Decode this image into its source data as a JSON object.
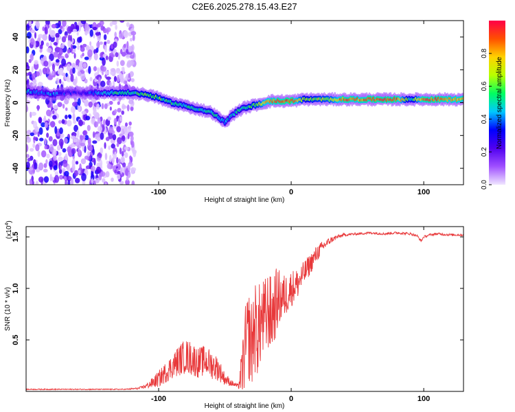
{
  "figure": {
    "title": "C2E6.2025.278.15.43.E27"
  },
  "colors": {
    "snr_line": "#e8383a",
    "axis": "#000000",
    "background": "#ffffff"
  },
  "chart_data": [
    {
      "type": "heatmap",
      "name": "spectrogram",
      "xlabel": "Height of straight line (km)",
      "ylabel": "Frequency (Hz)",
      "xlim": [
        -200,
        130
      ],
      "ylim": [
        -50,
        50
      ],
      "xticks": [
        -100,
        0,
        100
      ],
      "xtick_labels": [
        "-100",
        "0",
        "100"
      ],
      "yticks": [
        -40,
        -20,
        0,
        20,
        40
      ],
      "ytick_labels": [
        "-40",
        "-20",
        "0",
        "20",
        "40"
      ],
      "colorbar": {
        "label": "Normalized spectral amplitude",
        "range": [
          0,
          1
        ],
        "ticks": [
          0.0,
          0.2,
          0.4,
          0.6,
          0.8
        ],
        "tick_labels": [
          "0.0",
          "0.2",
          "0.4",
          "0.6",
          "0.8"
        ],
        "stops": [
          "#f0e6ff",
          "#a050ff",
          "#5000f0",
          "#0000ff",
          "#00c8ff",
          "#00ff60",
          "#b8ff00",
          "#ffd200",
          "#ff5000",
          "#ff0048"
        ]
      },
      "noise_region_x": [
        -200,
        -118
      ],
      "ridge": [
        {
          "x": -200,
          "y": 7,
          "amp": 0.45
        },
        {
          "x": -190,
          "y": 6,
          "amp": 0.35
        },
        {
          "x": -180,
          "y": 5,
          "amp": 0.4
        },
        {
          "x": -170,
          "y": 6,
          "amp": 0.3
        },
        {
          "x": -160,
          "y": 6,
          "amp": 0.25
        },
        {
          "x": -150,
          "y": 6,
          "amp": 0.35
        },
        {
          "x": -140,
          "y": 6,
          "amp": 0.45
        },
        {
          "x": -130,
          "y": 6,
          "amp": 0.55
        },
        {
          "x": -120,
          "y": 6,
          "amp": 0.5
        },
        {
          "x": -110,
          "y": 5,
          "amp": 0.6
        },
        {
          "x": -100,
          "y": 3,
          "amp": 0.6
        },
        {
          "x": -95,
          "y": 1,
          "amp": 0.55
        },
        {
          "x": -90,
          "y": 0,
          "amp": 0.55
        },
        {
          "x": -85,
          "y": -1,
          "amp": 0.5
        },
        {
          "x": -80,
          "y": -2,
          "amp": 0.5
        },
        {
          "x": -75,
          "y": -3,
          "amp": 0.5
        },
        {
          "x": -70,
          "y": -4,
          "amp": 0.5
        },
        {
          "x": -65,
          "y": -5,
          "amp": 0.5
        },
        {
          "x": -60,
          "y": -6,
          "amp": 0.5
        },
        {
          "x": -55,
          "y": -9,
          "amp": 0.5
        },
        {
          "x": -50,
          "y": -12,
          "amp": 0.45
        },
        {
          "x": -45,
          "y": -8,
          "amp": 0.45
        },
        {
          "x": -40,
          "y": -5,
          "amp": 0.5
        },
        {
          "x": -35,
          "y": -3,
          "amp": 0.5
        },
        {
          "x": -30,
          "y": -2,
          "amp": 0.6
        },
        {
          "x": -25,
          "y": -1,
          "amp": 0.65
        },
        {
          "x": -20,
          "y": 0,
          "amp": 0.8
        },
        {
          "x": -15,
          "y": 1,
          "amp": 0.85
        },
        {
          "x": -10,
          "y": 1,
          "amp": 0.9
        },
        {
          "x": -5,
          "y": 1,
          "amp": 0.9
        },
        {
          "x": 0,
          "y": 1,
          "amp": 0.95
        },
        {
          "x": 10,
          "y": 2,
          "amp": 0.6
        },
        {
          "x": 20,
          "y": 2,
          "amp": 0.65
        },
        {
          "x": 30,
          "y": 2,
          "amp": 0.7
        },
        {
          "x": 40,
          "y": 2,
          "amp": 0.9
        },
        {
          "x": 50,
          "y": 2,
          "amp": 0.85
        },
        {
          "x": 60,
          "y": 2,
          "amp": 0.9
        },
        {
          "x": 70,
          "y": 2,
          "amp": 0.9
        },
        {
          "x": 80,
          "y": 2,
          "amp": 0.9
        },
        {
          "x": 90,
          "y": 2,
          "amp": 0.5
        },
        {
          "x": 100,
          "y": 2,
          "amp": 0.9
        },
        {
          "x": 110,
          "y": 2,
          "amp": 0.9
        },
        {
          "x": 120,
          "y": 2,
          "amp": 0.85
        },
        {
          "x": 130,
          "y": 2,
          "amp": 0.85
        }
      ]
    },
    {
      "type": "line",
      "name": "snr",
      "xlabel": "Height of straight line (km)",
      "ylabel": "SNR (10 * v/v)",
      "y_multiplier": "(x10",
      "y_multiplier_exp": "4",
      "y_multiplier_close": ")",
      "xlim": [
        -200,
        130
      ],
      "ylim": [
        0,
        1.6
      ],
      "xticks": [
        -100,
        0,
        100
      ],
      "xtick_labels": [
        "-100",
        "0",
        "100"
      ],
      "yticks": [
        0.5,
        1.0,
        1.5
      ],
      "ytick_labels": [
        "0.5",
        "1.0",
        "1.5"
      ],
      "series": [
        {
          "name": "SNR",
          "x": [
            -200,
            -180,
            -160,
            -140,
            -125,
            -115,
            -110,
            -105,
            -100,
            -95,
            -90,
            -85,
            -80,
            -75,
            -70,
            -65,
            -60,
            -55,
            -50,
            -45,
            -40,
            -37,
            -35,
            -32,
            -30,
            -28,
            -25,
            -22,
            -20,
            -17,
            -15,
            -12,
            -10,
            -5,
            0,
            5,
            10,
            15,
            20,
            25,
            30,
            35,
            40,
            50,
            60,
            70,
            80,
            90,
            95,
            98,
            100,
            105,
            110,
            120,
            130
          ],
          "values": [
            0.02,
            0.02,
            0.02,
            0.02,
            0.02,
            0.03,
            0.05,
            0.08,
            0.12,
            0.18,
            0.24,
            0.3,
            0.34,
            0.32,
            0.28,
            0.3,
            0.26,
            0.22,
            0.12,
            0.08,
            0.05,
            0.2,
            0.4,
            0.55,
            0.45,
            0.62,
            0.58,
            0.7,
            0.68,
            0.8,
            0.72,
            0.85,
            0.9,
            0.92,
            1.0,
            1.05,
            1.15,
            1.25,
            1.35,
            1.42,
            1.47,
            1.5,
            1.52,
            1.53,
            1.54,
            1.53,
            1.54,
            1.53,
            1.51,
            1.46,
            1.5,
            1.52,
            1.53,
            1.52,
            1.52
          ],
          "noise_amplitude": [
            0.005,
            0.005,
            0.005,
            0.005,
            0.005,
            0.01,
            0.02,
            0.05,
            0.08,
            0.1,
            0.12,
            0.15,
            0.17,
            0.17,
            0.15,
            0.15,
            0.14,
            0.12,
            0.06,
            0.03,
            0.02,
            0.25,
            0.4,
            0.45,
            0.45,
            0.45,
            0.45,
            0.4,
            0.42,
            0.4,
            0.38,
            0.35,
            0.3,
            0.22,
            0.18,
            0.15,
            0.12,
            0.1,
            0.08,
            0.05,
            0.03,
            0.02,
            0.015,
            0.012,
            0.012,
            0.012,
            0.012,
            0.012,
            0.012,
            0.012,
            0.012,
            0.012,
            0.012,
            0.012,
            0.012
          ]
        }
      ]
    }
  ]
}
